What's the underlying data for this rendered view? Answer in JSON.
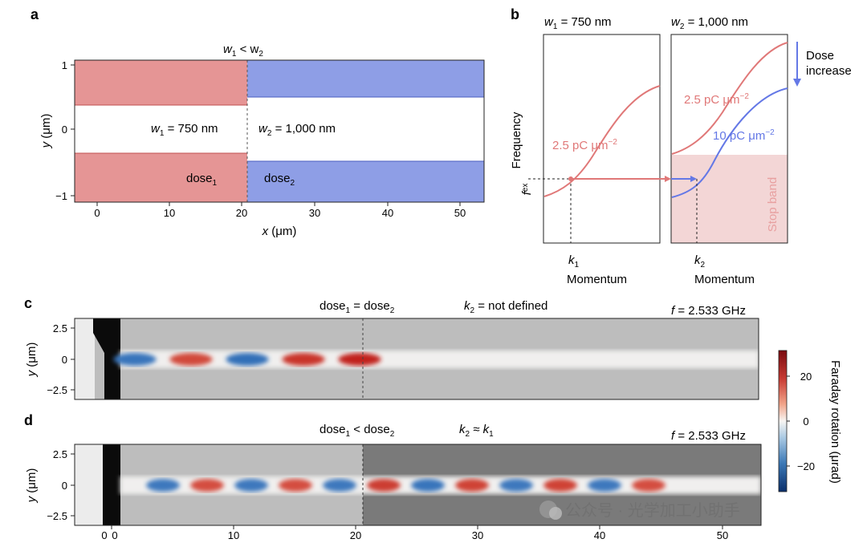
{
  "panels": {
    "a": {
      "label": "a",
      "top_annotation": [
        "w",
        "1",
        " < w",
        "2"
      ],
      "w1_label": [
        "w",
        "1",
        " = 750 nm"
      ],
      "w2_label": [
        "w",
        "2",
        " = 1,000 nm"
      ],
      "dose1_label": [
        "dose",
        "1"
      ],
      "dose2_label": [
        "dose",
        "2"
      ],
      "xlabel": [
        "x",
        " (μm)"
      ],
      "ylabel": [
        "y",
        " (μm)"
      ],
      "xticks": [
        "0",
        "10",
        "20",
        "30",
        "40",
        "50"
      ],
      "yticks": [
        "1",
        "0",
        "−1"
      ],
      "colors": {
        "red": "#e59595",
        "blue": "#8e9ee6"
      }
    },
    "b": {
      "label": "b",
      "left_title": [
        "w",
        "1",
        " = 750 nm"
      ],
      "right_title": [
        "w",
        "2",
        " = 1,000 nm"
      ],
      "ylabel": "Frequency",
      "fex_label": [
        "f",
        "ex"
      ],
      "k1_label": [
        "k",
        "1"
      ],
      "k2_label": [
        "k",
        "2"
      ],
      "xlabel_left": "Momentum",
      "xlabel_right": "Momentum",
      "curve_left_label": [
        "2.5 pC μm",
        "−2"
      ],
      "curve_right_red_label": [
        "2.5 pC μm",
        "−2"
      ],
      "curve_right_blue_label": [
        "10 pC μm",
        "−2"
      ],
      "stop_band_label": "Stop band",
      "dose_increase": [
        "Dose",
        "increase"
      ],
      "colors": {
        "red": "#e07878",
        "blue": "#6478e6",
        "stopband": "#f3d6d6"
      }
    },
    "c": {
      "label": "c",
      "annotation1": [
        "dose",
        "1",
        " = dose",
        "2"
      ],
      "annotation2": [
        "k",
        "2",
        " = not defined"
      ],
      "freq": [
        "f",
        " = 2.533 GHz"
      ],
      "ylabel": [
        "y",
        " (μm)"
      ],
      "yticks": [
        "2.5",
        "0",
        "−2.5"
      ],
      "waves": [
        -0.7,
        0.65,
        -0.75,
        0.8,
        0.95
      ]
    },
    "d": {
      "label": "d",
      "annotation1": [
        "dose",
        "1",
        " < dose",
        "2"
      ],
      "annotation2": [
        "k",
        "2",
        " ≈ k",
        "1"
      ],
      "freq": [
        "f",
        " = 2.533 GHz"
      ],
      "ylabel": [
        "y",
        " (μm)"
      ],
      "yticks": [
        "2.5",
        "0",
        "−2.5"
      ],
      "xticks": [
        "0",
        "10",
        "20",
        "30",
        "40",
        "50"
      ],
      "xticks_extra": "0",
      "waves": [
        -0.65,
        0.6,
        -0.65,
        0.6,
        -0.65,
        0.75,
        -0.7,
        0.7,
        -0.65,
        0.7,
        -0.65,
        0.6
      ]
    },
    "colorbar": {
      "label": "Faraday rotation (μrad)",
      "ticks": [
        "20",
        "0",
        "−20"
      ]
    }
  },
  "watermark": "公众号 · 光学加工小助手"
}
